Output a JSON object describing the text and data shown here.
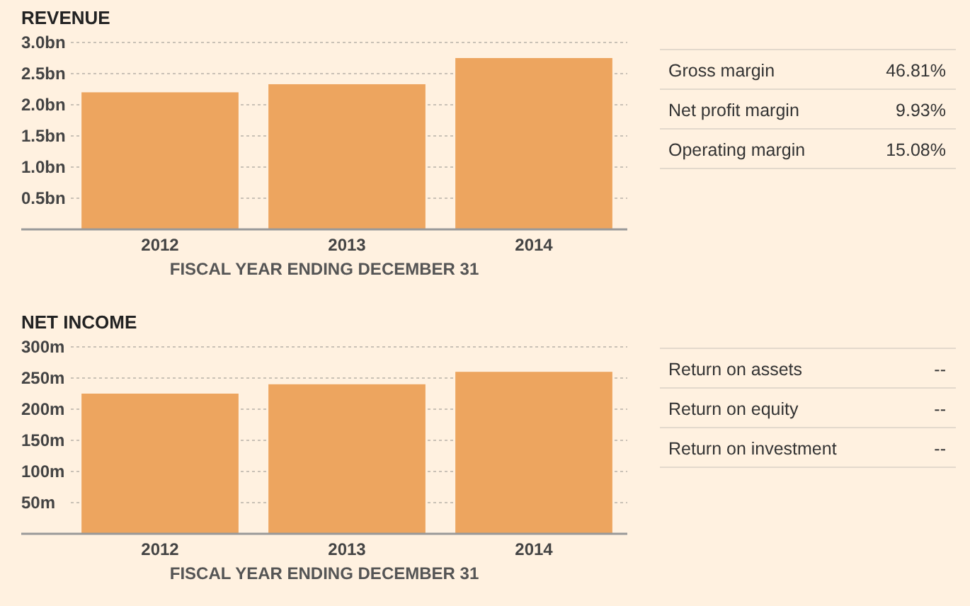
{
  "chart_data": [
    {
      "type": "bar",
      "title": "REVENUE",
      "xlabel": "FISCAL YEAR ENDING DECEMBER 31",
      "categories": [
        "2012",
        "2013",
        "2014"
      ],
      "values": [
        2.2,
        2.33,
        2.75
      ],
      "color": "#eda55f",
      "ylim": [
        0,
        3
      ],
      "yticks": [
        {
          "value": 0.5,
          "label": "0.5bn"
        },
        {
          "value": 1,
          "label": "1.0bn"
        },
        {
          "value": 1.5,
          "label": "1.5bn"
        },
        {
          "value": 2,
          "label": "2.0bn"
        },
        {
          "value": 2.5,
          "label": "2.5bn"
        },
        {
          "value": 3,
          "label": "3.0bn"
        }
      ],
      "grid": "y"
    },
    {
      "type": "other",
      "annotations": [
        "Gross margin",
        "46.81%",
        "Net profit margin",
        "9.93%",
        "Operating margin",
        "15.08%"
      ]
    },
    {
      "type": "bar",
      "title": "NET INCOME",
      "xlabel": "FISCAL YEAR ENDING DECEMBER 31",
      "categories": [
        "2012",
        "2013",
        "2014"
      ],
      "values": [
        225,
        240,
        260
      ],
      "color": "#eda55f",
      "ylim": [
        0,
        300
      ],
      "yticks": [
        {
          "value": 50,
          "label": "50m"
        },
        {
          "value": 100,
          "label": "100m"
        },
        {
          "value": 150,
          "label": "150m"
        },
        {
          "value": 200,
          "label": "200m"
        },
        {
          "value": 250,
          "label": "250m"
        },
        {
          "value": 300,
          "label": "300m"
        }
      ],
      "grid": "y"
    },
    {
      "type": "other",
      "annotations": [
        "Return on assets",
        "--",
        "Return on equity",
        "--",
        "Return on investment",
        "--"
      ]
    }
  ]
}
